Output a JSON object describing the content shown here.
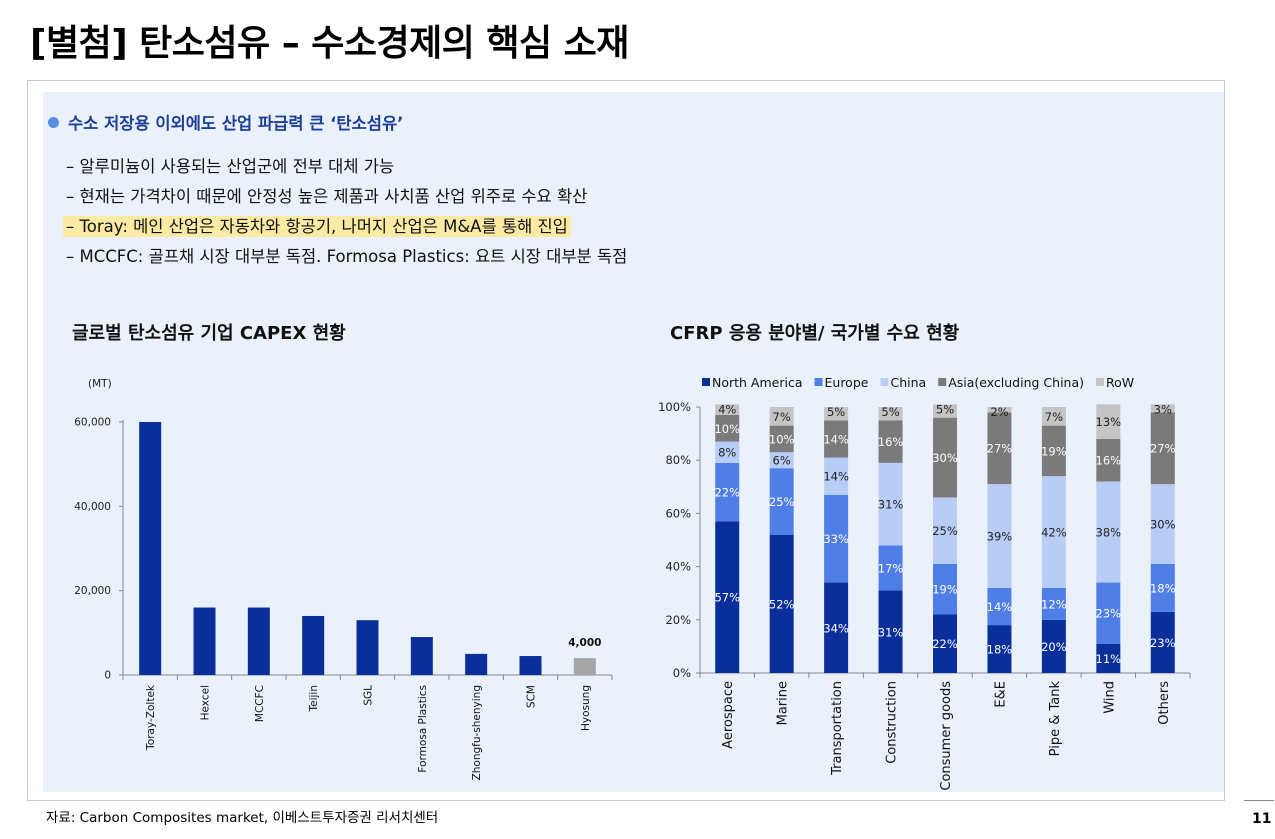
{
  "page": {
    "title": "[별첨] 탄소섬유 – 수소경제의 핵심 소재",
    "page_number": "11",
    "source": "자료: Carbon Composites market, 이베스트투자증권 리서치센터"
  },
  "summary": {
    "heading": "수소 저장용 이외에도 산업 파급력 큰 ‘탄소섬유’",
    "lines": [
      "– 알루미늄이 사용되는 산업군에 전부 대체 가능",
      "– 현재는 가격차이 때문에 안정성 높은 제품과 사치품 산업 위주로 수요 확산",
      "– Toray: 메인 산업은 자동차와 항공기, 나머지 산업은 M&A를 통해 진입",
      "– MCCFC: 골프채 시장 대부분 독점. Formosa Plastics: 요트 시장 대부분 독점"
    ],
    "highlighted_line": 2
  },
  "colors": {
    "title_blue": "#1c3d98",
    "bar_blue": "#0a2f9b",
    "bar_grey": "#a6a6a6",
    "north_america": "#0a2f9b",
    "europe": "#4f7fe6",
    "china": "#b7cdf5",
    "asia": "#7a7a7a",
    "row": "#c4c4c4",
    "highlight": "#fbeaa3"
  },
  "chart_data": [
    {
      "type": "bar",
      "title": "글로벌 탄소섬유 기업 CAPEX 현황",
      "unit_label": "(MT)",
      "categories": [
        "Toray-Zoltek",
        "Hexcel",
        "MCCFC",
        "Teijin",
        "SGL",
        "Formosa Plastics",
        "Zhongfu-shenying",
        "SCM",
        "Hyosung"
      ],
      "values": [
        60000,
        16000,
        16000,
        14000,
        13000,
        9000,
        5000,
        4500,
        4000
      ],
      "highlight_category": "Hyosung",
      "data_labels": [
        {
          "category": "Hyosung",
          "text": "4,000"
        }
      ],
      "ylim": [
        0,
        60000
      ],
      "yticks": [
        0,
        20000,
        40000,
        60000
      ],
      "ytick_labels": [
        "0",
        "20,000",
        "40,000",
        "60,000"
      ],
      "grid": false
    },
    {
      "type": "bar",
      "stacked": true,
      "title": "CFRP 응용 분야별/ 국가별 수요 현황",
      "categories": [
        "Aerospace",
        "Marine",
        "Transportation",
        "Construction",
        "Consumer goods",
        "E&E",
        "Pipe & Tank",
        "Wind",
        "Others"
      ],
      "series": [
        {
          "name": "North America",
          "values": [
            57,
            52,
            34,
            31,
            22,
            18,
            20,
            11,
            23
          ]
        },
        {
          "name": "Europe",
          "values": [
            22,
            25,
            33,
            17,
            19,
            14,
            12,
            23,
            18
          ]
        },
        {
          "name": "China",
          "values": [
            8,
            6,
            14,
            31,
            25,
            39,
            42,
            38,
            30
          ]
        },
        {
          "name": "Asia(excluding China)",
          "values": [
            10,
            10,
            14,
            16,
            30,
            27,
            19,
            16,
            27
          ]
        },
        {
          "name": "RoW",
          "values": [
            4,
            7,
            5,
            5,
            5,
            2,
            7,
            13,
            3
          ]
        }
      ],
      "ylim": [
        0,
        100
      ],
      "yticks": [
        0,
        20,
        40,
        60,
        80,
        100
      ],
      "ytick_labels": [
        "0%",
        "20%",
        "40%",
        "60%",
        "80%",
        "100%"
      ],
      "legend_position": "top",
      "grid": false
    }
  ]
}
